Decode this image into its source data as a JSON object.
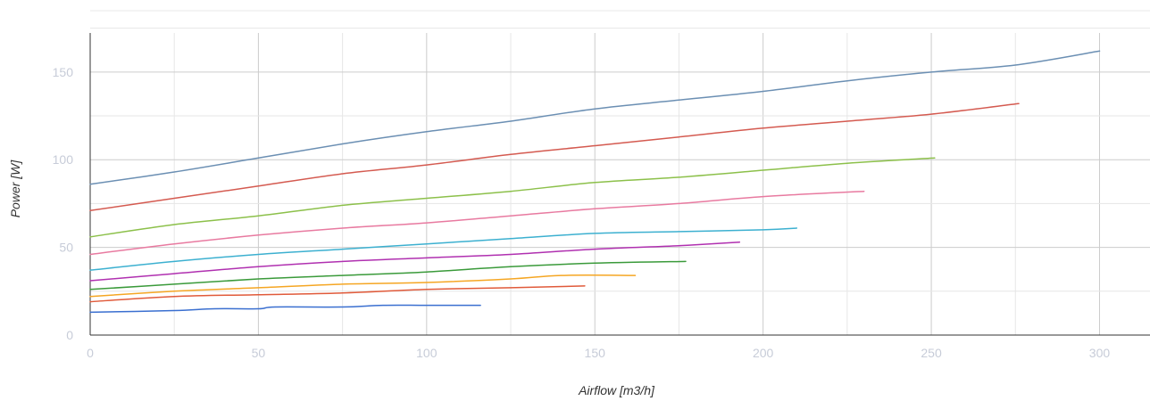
{
  "chart_data": {
    "type": "line",
    "xlabel": "Airflow [m3/h]",
    "ylabel": "Power [W]",
    "xlim": [
      0,
      315
    ],
    "ylim": [
      0,
      185
    ],
    "x_ticks": [
      0,
      50,
      100,
      150,
      200,
      250,
      300
    ],
    "y_ticks": [
      0,
      50,
      100,
      150
    ],
    "x_grid_step": 25,
    "y_grid_step": 25,
    "grid": true,
    "series": [
      {
        "color": "#6b8fb3",
        "x": [
          0,
          25,
          50,
          75,
          100,
          125,
          150,
          175,
          200,
          225,
          250,
          275,
          300
        ],
        "y": [
          86,
          93,
          101,
          109,
          116,
          122,
          129,
          134,
          139,
          145,
          150,
          154,
          162
        ]
      },
      {
        "color": "#d45a50",
        "x": [
          0,
          25,
          50,
          75,
          100,
          125,
          150,
          175,
          200,
          225,
          250,
          276
        ],
        "y": [
          71,
          78,
          85,
          92,
          97,
          103,
          108,
          113,
          118,
          122,
          126,
          132
        ]
      },
      {
        "color": "#8cc04a",
        "x": [
          0,
          25,
          50,
          75,
          100,
          125,
          150,
          175,
          200,
          225,
          251
        ],
        "y": [
          56,
          63,
          68,
          74,
          78,
          82,
          87,
          90,
          94,
          98,
          101
        ]
      },
      {
        "color": "#e87aa0",
        "x": [
          0,
          25,
          50,
          75,
          100,
          125,
          150,
          175,
          200,
          230
        ],
        "y": [
          46,
          52,
          57,
          61,
          64,
          68,
          72,
          75,
          79,
          82
        ]
      },
      {
        "color": "#3cb0d0",
        "x": [
          0,
          25,
          50,
          75,
          100,
          125,
          150,
          175,
          200,
          210
        ],
        "y": [
          37,
          42,
          46,
          49,
          52,
          55,
          58,
          59,
          60,
          61
        ]
      },
      {
        "color": "#b030b0",
        "x": [
          0,
          25,
          50,
          75,
          100,
          125,
          150,
          175,
          193
        ],
        "y": [
          31,
          35,
          39,
          42,
          44,
          46,
          49,
          51,
          53
        ]
      },
      {
        "color": "#3a9a3a",
        "x": [
          0,
          25,
          50,
          75,
          100,
          125,
          150,
          177
        ],
        "y": [
          26,
          29,
          32,
          34,
          36,
          39,
          41,
          42
        ]
      },
      {
        "color": "#f5a623",
        "x": [
          0,
          25,
          50,
          75,
          100,
          125,
          140,
          162
        ],
        "y": [
          22,
          25,
          27,
          29,
          30,
          32,
          34,
          34
        ]
      },
      {
        "color": "#e05a3a",
        "x": [
          0,
          25,
          50,
          75,
          100,
          125,
          147
        ],
        "y": [
          19,
          22,
          23,
          24,
          26,
          27,
          28
        ]
      },
      {
        "color": "#3a6fd0",
        "x": [
          0,
          25,
          37,
          50,
          55,
          75,
          87,
          100,
          116
        ],
        "y": [
          13,
          14,
          15,
          15,
          16,
          16,
          17,
          17,
          17
        ]
      }
    ]
  }
}
